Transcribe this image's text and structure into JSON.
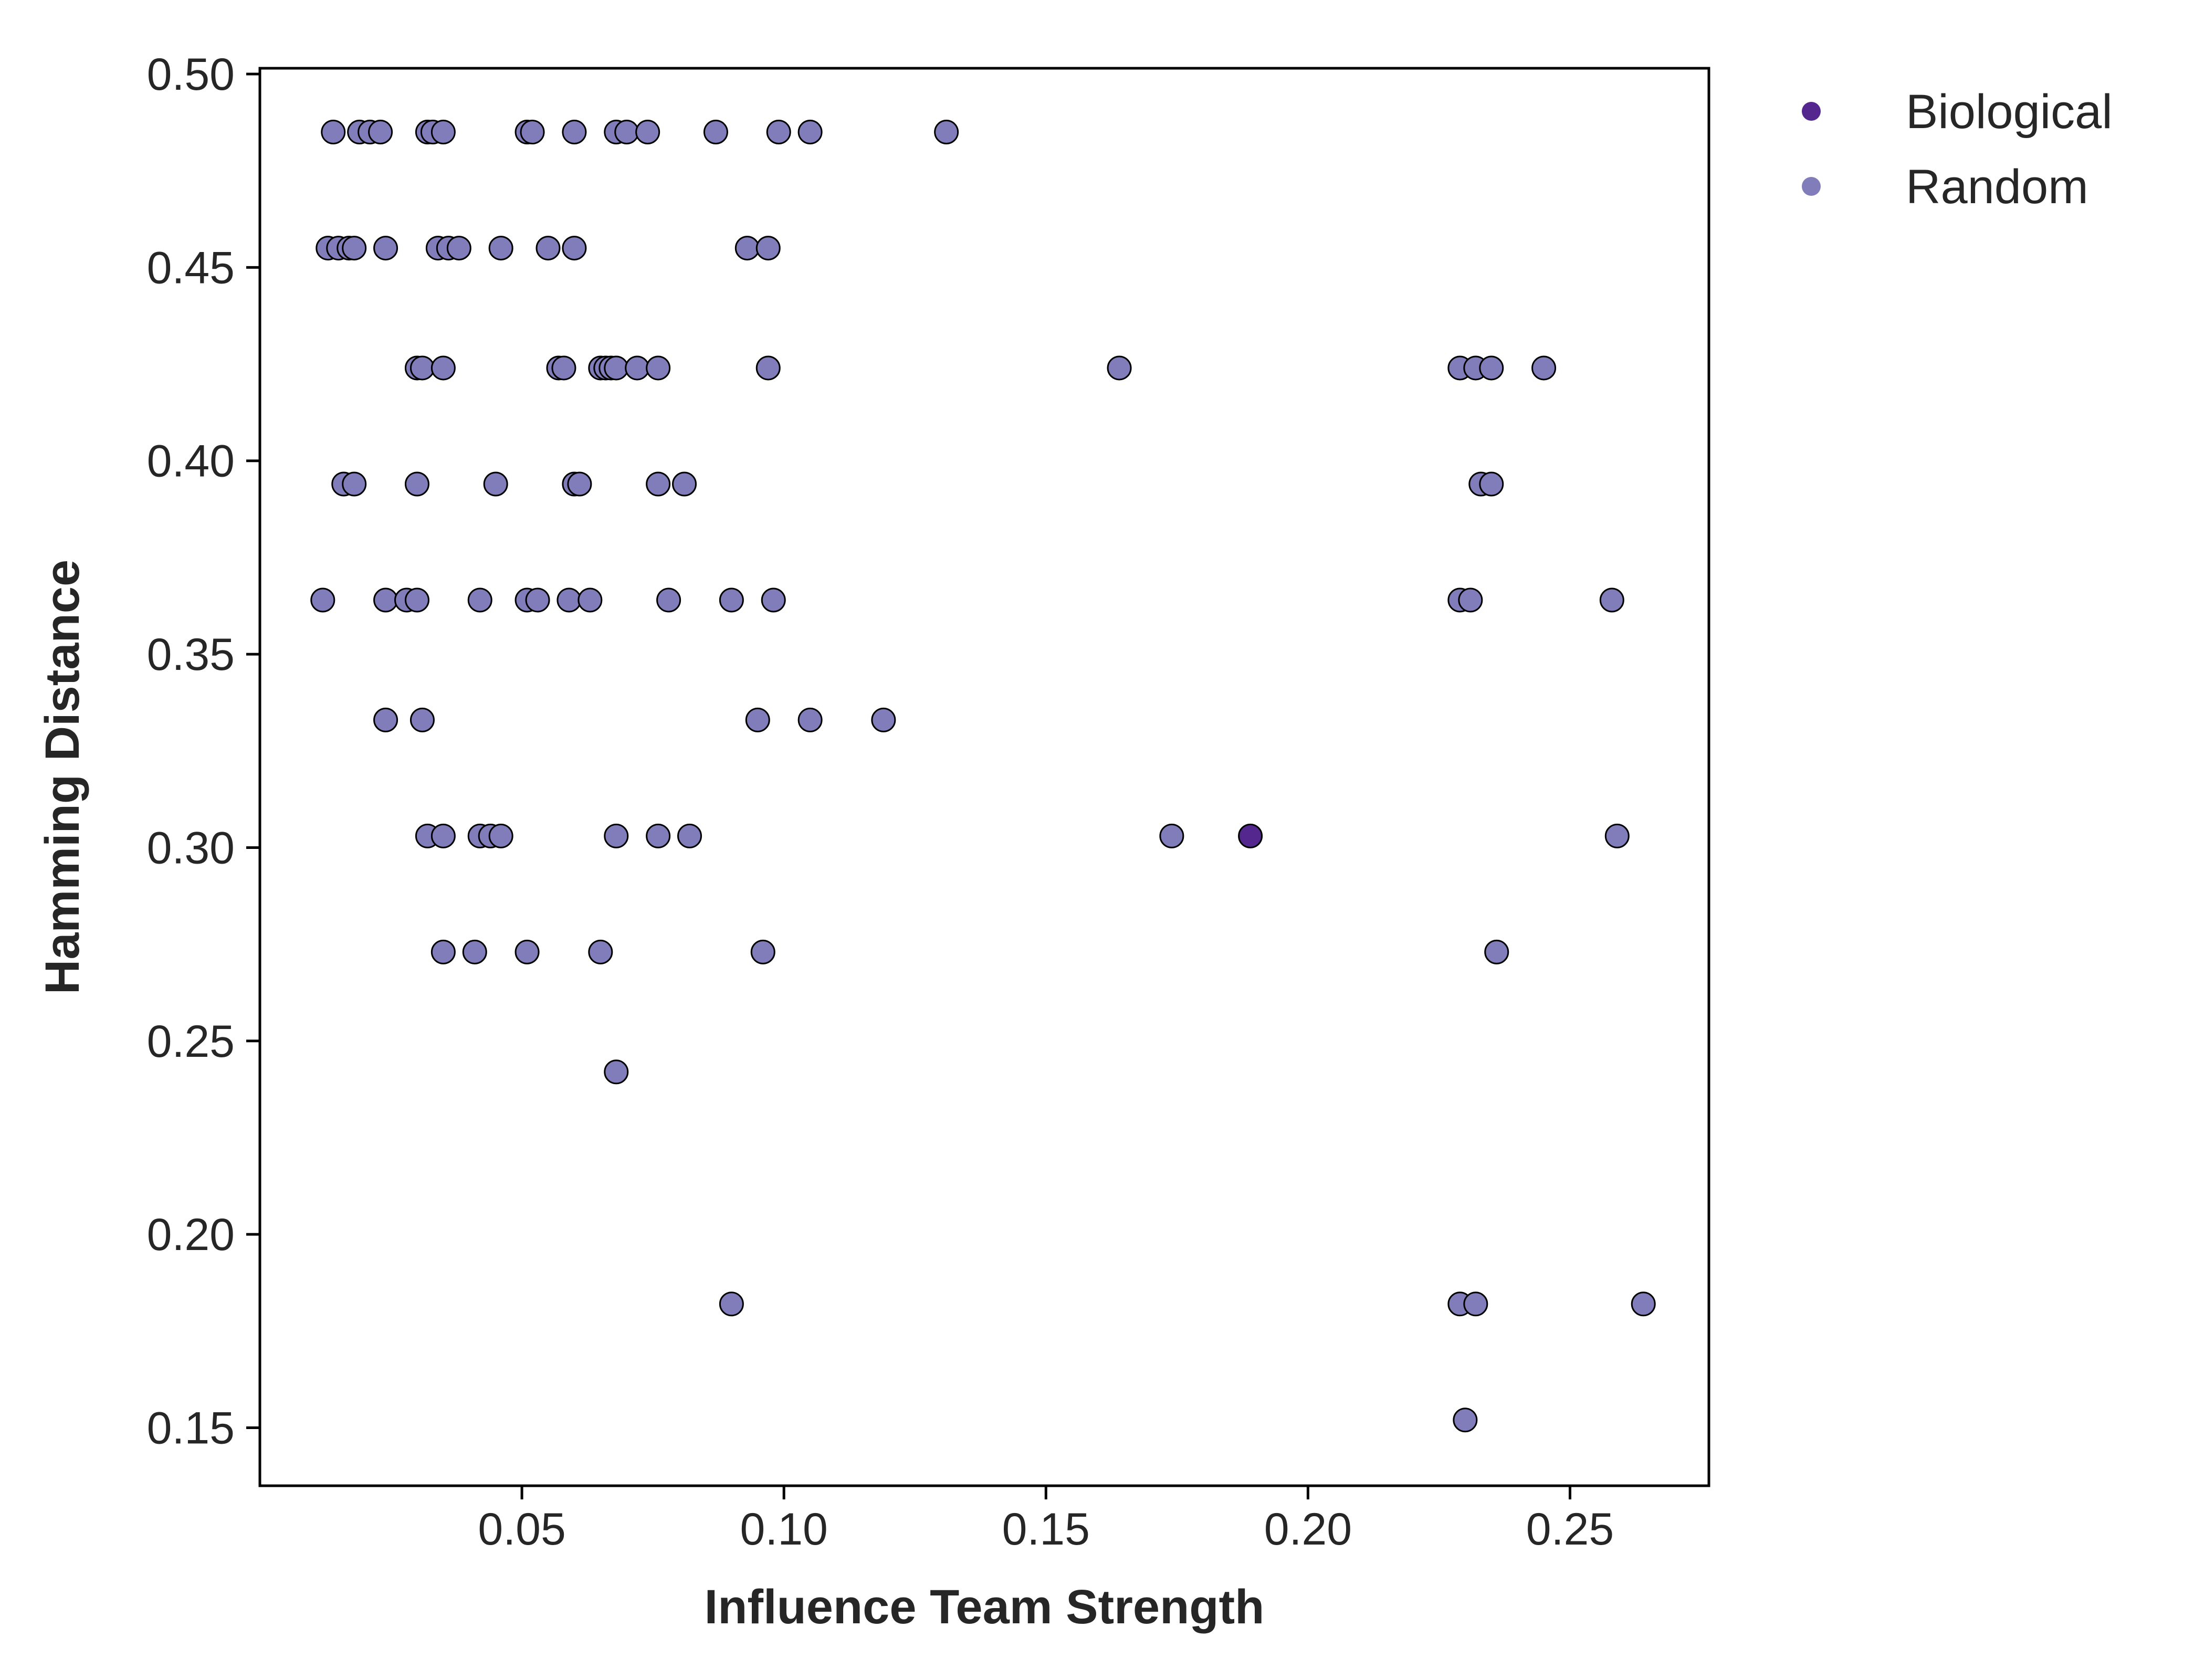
{
  "chart_data": {
    "type": "scatter",
    "title": "",
    "xlabel": "Influence Team Strength",
    "ylabel": "Hamming Distance",
    "xlim": [
      0.0,
      0.2765
    ],
    "ylim": [
      0.135,
      0.5015
    ],
    "xticks": [
      0.05,
      0.1,
      0.15,
      0.2,
      0.25
    ],
    "xtick_labels": [
      "0.05",
      "0.10",
      "0.15",
      "0.20",
      "0.25"
    ],
    "yticks": [
      0.15,
      0.2,
      0.25,
      0.3,
      0.35,
      0.4,
      0.45,
      0.5
    ],
    "ytick_labels": [
      "0.15",
      "0.20",
      "0.25",
      "0.30",
      "0.35",
      "0.40",
      "0.45",
      "0.50"
    ],
    "grid": false,
    "legend_position": "outside-top-right",
    "series": [
      {
        "name": "Biological",
        "color": "#54278f",
        "points": [
          [
            0.189,
            0.303
          ]
        ]
      },
      {
        "name": "Random",
        "color": "#807dba",
        "points": [
          [
            0.014,
            0.485
          ],
          [
            0.019,
            0.485
          ],
          [
            0.021,
            0.485
          ],
          [
            0.023,
            0.485
          ],
          [
            0.032,
            0.485
          ],
          [
            0.033,
            0.485
          ],
          [
            0.035,
            0.485
          ],
          [
            0.051,
            0.485
          ],
          [
            0.052,
            0.485
          ],
          [
            0.06,
            0.485
          ],
          [
            0.068,
            0.485
          ],
          [
            0.07,
            0.485
          ],
          [
            0.074,
            0.485
          ],
          [
            0.087,
            0.485
          ],
          [
            0.099,
            0.485
          ],
          [
            0.105,
            0.485
          ],
          [
            0.131,
            0.485
          ],
          [
            0.013,
            0.455
          ],
          [
            0.015,
            0.455
          ],
          [
            0.017,
            0.455
          ],
          [
            0.018,
            0.455
          ],
          [
            0.024,
            0.455
          ],
          [
            0.034,
            0.455
          ],
          [
            0.036,
            0.455
          ],
          [
            0.038,
            0.455
          ],
          [
            0.046,
            0.455
          ],
          [
            0.055,
            0.455
          ],
          [
            0.06,
            0.455
          ],
          [
            0.093,
            0.455
          ],
          [
            0.097,
            0.455
          ],
          [
            0.03,
            0.424
          ],
          [
            0.031,
            0.424
          ],
          [
            0.035,
            0.424
          ],
          [
            0.057,
            0.424
          ],
          [
            0.058,
            0.424
          ],
          [
            0.065,
            0.424
          ],
          [
            0.066,
            0.424
          ],
          [
            0.067,
            0.424
          ],
          [
            0.068,
            0.424
          ],
          [
            0.072,
            0.424
          ],
          [
            0.076,
            0.424
          ],
          [
            0.097,
            0.424
          ],
          [
            0.164,
            0.424
          ],
          [
            0.229,
            0.424
          ],
          [
            0.232,
            0.424
          ],
          [
            0.235,
            0.424
          ],
          [
            0.245,
            0.424
          ],
          [
            0.016,
            0.394
          ],
          [
            0.018,
            0.394
          ],
          [
            0.03,
            0.394
          ],
          [
            0.045,
            0.394
          ],
          [
            0.06,
            0.394
          ],
          [
            0.061,
            0.394
          ],
          [
            0.076,
            0.394
          ],
          [
            0.081,
            0.394
          ],
          [
            0.233,
            0.394
          ],
          [
            0.235,
            0.394
          ],
          [
            0.012,
            0.364
          ],
          [
            0.024,
            0.364
          ],
          [
            0.028,
            0.364
          ],
          [
            0.03,
            0.364
          ],
          [
            0.042,
            0.364
          ],
          [
            0.051,
            0.364
          ],
          [
            0.053,
            0.364
          ],
          [
            0.059,
            0.364
          ],
          [
            0.063,
            0.364
          ],
          [
            0.078,
            0.364
          ],
          [
            0.09,
            0.364
          ],
          [
            0.098,
            0.364
          ],
          [
            0.229,
            0.364
          ],
          [
            0.231,
            0.364
          ],
          [
            0.258,
            0.364
          ],
          [
            0.024,
            0.333
          ],
          [
            0.031,
            0.333
          ],
          [
            0.095,
            0.333
          ],
          [
            0.105,
            0.333
          ],
          [
            0.119,
            0.333
          ],
          [
            0.032,
            0.303
          ],
          [
            0.035,
            0.303
          ],
          [
            0.042,
            0.303
          ],
          [
            0.044,
            0.303
          ],
          [
            0.046,
            0.303
          ],
          [
            0.068,
            0.303
          ],
          [
            0.076,
            0.303
          ],
          [
            0.082,
            0.303
          ],
          [
            0.174,
            0.303
          ],
          [
            0.259,
            0.303
          ],
          [
            0.035,
            0.273
          ],
          [
            0.041,
            0.273
          ],
          [
            0.051,
            0.273
          ],
          [
            0.065,
            0.273
          ],
          [
            0.096,
            0.273
          ],
          [
            0.236,
            0.273
          ],
          [
            0.068,
            0.242
          ],
          [
            0.09,
            0.182
          ],
          [
            0.229,
            0.182
          ],
          [
            0.232,
            0.182
          ],
          [
            0.264,
            0.182
          ],
          [
            0.23,
            0.152
          ]
        ]
      }
    ]
  }
}
